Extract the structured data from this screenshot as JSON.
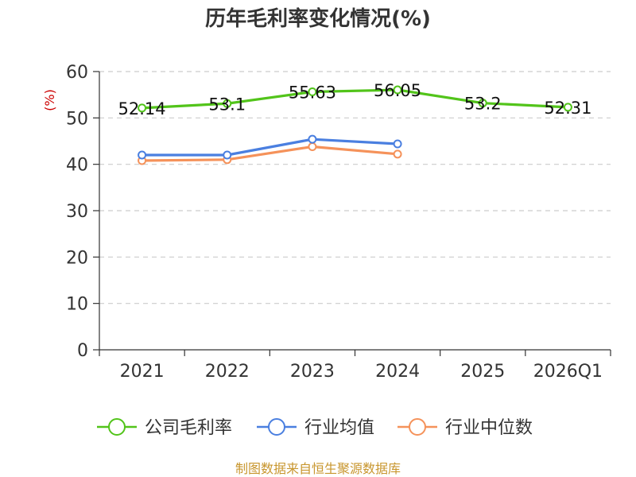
{
  "chart_data": {
    "type": "line",
    "title": "历年毛利率变化情况(%)",
    "ylabel": "(%)",
    "xlabel": "",
    "categories": [
      "2021",
      "2022",
      "2023",
      "2024",
      "2025",
      "2026Q1"
    ],
    "ylim": [
      0,
      60
    ],
    "yticks": [
      "0",
      "10",
      "20",
      "30",
      "40",
      "50",
      "60"
    ],
    "grid": true,
    "legend_position": "bottom",
    "series": [
      {
        "name": "公司毛利率",
        "color": "#52c41a",
        "values": [
          52.14,
          53.1,
          55.63,
          56.05,
          53.2,
          52.31
        ],
        "labels": [
          "52.14",
          "53.1",
          "55.63",
          "56.05",
          "53.2",
          "52.31"
        ]
      },
      {
        "name": "行业均值",
        "color": "#4a7fe0",
        "values": [
          42.0,
          42.0,
          45.4,
          44.4,
          null,
          null
        ]
      },
      {
        "name": "行业中位数",
        "color": "#f5925a",
        "values": [
          40.8,
          41.0,
          43.8,
          42.2,
          null,
          null
        ]
      }
    ],
    "source": "制图数据来自恒生聚源数据库"
  }
}
